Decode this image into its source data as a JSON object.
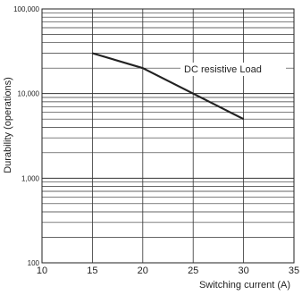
{
  "chart_data": {
    "type": "line",
    "title": "",
    "xlabel": "Switching current (A)",
    "ylabel": "Durability (operations)",
    "x_scale": "linear",
    "y_scale": "log",
    "xlim": [
      10,
      35
    ],
    "ylim": [
      100,
      100000
    ],
    "x_ticks": [
      "10",
      "15",
      "20",
      "25",
      "30",
      "35"
    ],
    "y_ticks": [
      "100",
      "1,000",
      "10,000",
      "100,000"
    ],
    "grid": true,
    "annotation": "DC  resistive Load",
    "series": [
      {
        "x": [
          15,
          20,
          25,
          30
        ],
        "y": [
          30000,
          20000,
          10000,
          5000
        ]
      }
    ],
    "colors": {
      "line": "#222222",
      "grid": "#333333",
      "background": "#ffffff"
    }
  }
}
